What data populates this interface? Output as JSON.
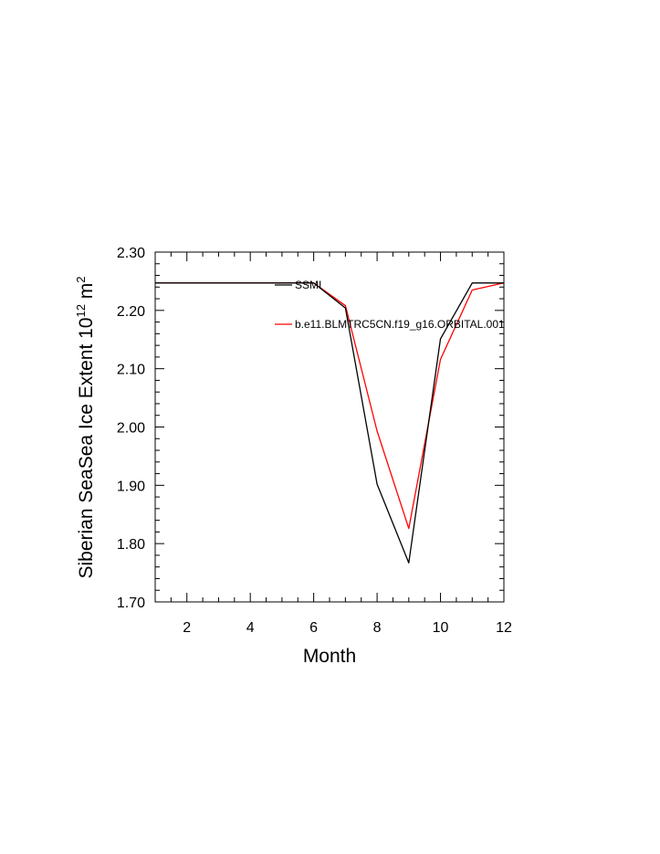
{
  "chart_data": {
    "type": "line",
    "title": "",
    "xlabel": "Month",
    "ylabel": {
      "base": "Siberian SeaSea Ice Extent 10",
      "exp1": "12",
      "mid": " m",
      "exp2": "2"
    },
    "xlim": [
      1,
      12
    ],
    "ylim": [
      1.7,
      2.3
    ],
    "xticks": [
      2,
      4,
      6,
      8,
      10,
      12
    ],
    "xtick_labels": [
      "2",
      "4",
      "6",
      "8",
      "10",
      "12"
    ],
    "yticks": [
      1.7,
      1.8,
      1.9,
      2.0,
      2.1,
      2.2,
      2.3
    ],
    "ytick_labels": [
      "1.70",
      "1.80",
      "1.90",
      "2.00",
      "2.10",
      "2.20",
      "2.30"
    ],
    "grid": false,
    "legend_placement": "top-right inside",
    "x": [
      1,
      2,
      3,
      4,
      5,
      6,
      7,
      8,
      9,
      10,
      11,
      12
    ],
    "series": [
      {
        "name": "SSMI",
        "color": "#000000",
        "values": [
          2.247,
          2.247,
          2.247,
          2.247,
          2.247,
          2.247,
          2.204,
          1.902,
          1.767,
          2.151,
          2.247,
          2.247
        ]
      },
      {
        "name": "b.e11.BLMTRC5CN.f19_g16.ORBITAL.001",
        "color": "#ff0000",
        "values": [
          2.247,
          2.247,
          2.247,
          2.247,
          2.247,
          2.247,
          2.208,
          1.993,
          1.826,
          2.116,
          2.235,
          2.247
        ]
      }
    ]
  }
}
